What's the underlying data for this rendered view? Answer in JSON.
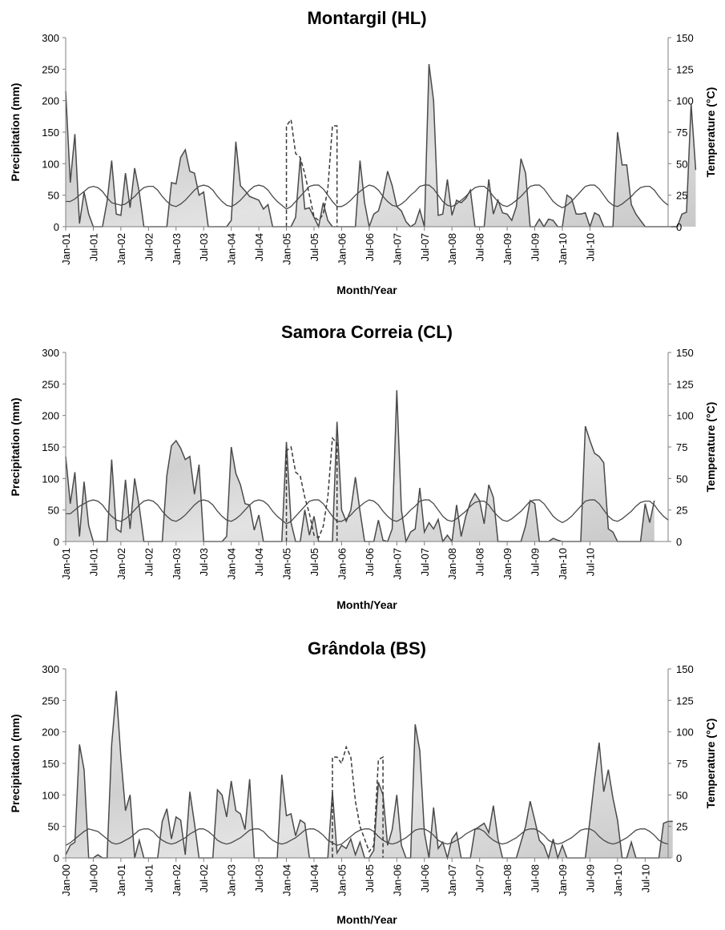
{
  "chart_data": [
    {
      "type": "area",
      "title": "Montargil (HL)",
      "xlabel": "Month/Year",
      "ylabel": "Precipitation (mm)",
      "y2label": "Temperature (°C)",
      "ylim": [
        0,
        300
      ],
      "y2lim": [
        0,
        150
      ],
      "yticks": [
        "0",
        "50",
        "100",
        "150",
        "200",
        "250",
        "300"
      ],
      "y2ticks": [
        "0",
        "25",
        "50",
        "75",
        "100",
        "125",
        "150"
      ],
      "start": "Jan-01",
      "xticks": [
        "Jan-01",
        "Jul-01",
        "Jan-02",
        "Jul-02",
        "Jan-03",
        "Jul-03",
        "Jan-04",
        "Jul-04",
        "Jan-05",
        "Jul-05",
        "Jan-06",
        "Jul-06",
        "Jan-07",
        "Jul-07",
        "Jan-08",
        "Jul-08",
        "Jan-09",
        "Jul-09",
        "Jan-10",
        "Jul-10"
      ],
      "series": [
        {
          "name": "",
          "values": [
            215,
            70,
            147,
            5,
            55,
            20,
            0,
            0,
            0,
            40,
            105,
            20,
            18,
            85,
            30,
            93,
            55,
            0,
            0,
            0,
            0,
            0,
            0,
            70,
            68,
            110,
            122,
            88,
            85,
            50,
            55,
            0,
            0,
            0,
            0,
            0,
            10,
            135,
            65,
            57,
            48,
            45,
            42,
            28,
            35,
            0,
            0,
            0,
            0,
            0,
            15,
            108,
            28,
            30,
            15,
            0,
            38,
            10,
            0,
            0,
            0,
            0,
            0,
            0,
            105,
            38,
            0,
            20,
            25,
            50,
            88,
            65,
            32,
            25,
            8,
            0,
            5,
            27,
            0,
            258,
            200,
            18,
            20,
            75,
            18,
            42,
            38,
            45,
            58,
            0,
            0,
            0,
            75,
            20,
            42,
            22,
            20,
            10,
            32,
            108,
            85,
            0,
            0,
            12,
            0,
            12,
            10,
            0,
            0,
            50,
            45,
            20,
            20,
            22,
            0,
            22,
            18,
            0,
            0,
            0,
            150,
            98,
            98,
            35,
            20,
            10,
            0,
            0,
            0,
            0,
            0,
            0,
            0,
            0,
            20,
            23,
            195,
            90
          ]
        },
        {
          "name": "",
          "values": [
            20,
            20,
            22,
            25,
            28,
            31,
            32,
            31,
            28,
            23,
            19,
            18,
            17,
            18,
            21,
            24,
            28,
            31,
            32,
            32,
            29,
            24,
            20,
            17,
            16,
            18,
            21,
            25,
            29,
            32,
            33,
            32,
            29,
            24,
            20,
            17,
            16,
            18,
            21,
            25,
            29,
            32,
            33,
            32,
            29,
            24,
            20,
            17,
            14,
            16,
            20,
            24,
            28,
            32,
            33,
            33,
            30,
            25,
            20,
            16,
            16,
            18,
            21,
            25,
            28,
            31,
            33,
            32,
            29,
            24,
            20,
            17,
            16,
            18,
            21,
            25,
            28,
            32,
            33,
            33,
            30,
            25,
            20,
            17,
            16,
            18,
            21,
            24,
            28,
            31,
            32,
            32,
            29,
            24,
            20,
            17,
            16,
            18,
            21,
            24,
            28,
            32,
            33,
            33,
            30,
            25,
            20,
            17,
            15,
            17,
            20,
            24,
            28,
            32,
            33,
            33,
            30,
            25,
            20,
            17,
            16,
            18,
            21,
            24,
            28,
            31,
            32,
            32,
            29,
            24,
            20,
            17
          ]
        },
        {
          "name": "",
          "style": "dashed",
          "x_index": [
            48,
            48,
            49,
            50,
            51,
            52,
            53,
            54,
            55,
            56,
            57,
            58,
            59,
            59
          ],
          "values": [
            0,
            80,
            85,
            58,
            55,
            42,
            25,
            8,
            5,
            10,
            30,
            80,
            80,
            0
          ]
        }
      ]
    },
    {
      "type": "area",
      "title": "Samora Correia (CL)",
      "xlabel": "Month/Year",
      "ylabel": "Precipitation (mm)",
      "y2label": "Temperature (°C)",
      "ylim": [
        0,
        300
      ],
      "y2lim": [
        0,
        150
      ],
      "yticks": [
        "0",
        "50",
        "100",
        "150",
        "200",
        "250",
        "300"
      ],
      "y2ticks": [
        "0",
        "25",
        "50",
        "75",
        "100",
        "125",
        "150"
      ],
      "start": "Jan-01",
      "xticks": [
        "Jan-01",
        "Jul-01",
        "Jan-02",
        "Jul-02",
        "Jan-03",
        "Jul-03",
        "Jan-04",
        "Jul-04",
        "Jan-05",
        "Jul-05",
        "Jan-06",
        "Jul-06",
        "Jan-07",
        "Jul-07",
        "Jan-08",
        "Jul-08",
        "Jan-09",
        "Jul-09",
        "Jan-10",
        "Jul-10"
      ],
      "series": [
        {
          "name": "",
          "values": [
            135,
            60,
            110,
            8,
            95,
            25,
            0,
            0,
            0,
            0,
            130,
            20,
            15,
            98,
            20,
            100,
            55,
            0,
            0,
            0,
            0,
            0,
            105,
            152,
            160,
            148,
            130,
            135,
            75,
            122,
            0,
            0,
            0,
            0,
            0,
            8,
            150,
            108,
            90,
            60,
            58,
            18,
            42,
            0,
            0,
            0,
            0,
            0,
            158,
            30,
            0,
            0,
            50,
            10,
            40,
            0,
            0,
            0,
            0,
            190,
            50,
            32,
            50,
            102,
            48,
            0,
            0,
            0,
            34,
            2,
            0,
            20,
            240,
            50,
            0,
            15,
            20,
            85,
            15,
            30,
            20,
            35,
            0,
            10,
            0,
            58,
            8,
            40,
            62,
            76,
            65,
            28,
            90,
            70,
            0,
            0,
            0,
            0,
            0,
            0,
            25,
            65,
            60,
            0,
            0,
            0,
            5,
            2,
            0,
            0,
            0,
            0,
            0,
            183,
            160,
            140,
            135,
            125,
            20,
            15,
            0,
            0,
            0,
            0,
            0,
            0,
            60,
            30,
            65
          ]
        },
        {
          "name": "",
          "values": [
            22,
            22,
            25,
            28,
            30,
            32,
            33,
            32,
            29,
            24,
            20,
            17,
            16,
            18,
            21,
            25,
            29,
            32,
            33,
            32,
            29,
            24,
            20,
            17,
            16,
            18,
            21,
            25,
            29,
            32,
            33,
            32,
            29,
            24,
            20,
            17,
            16,
            18,
            21,
            25,
            29,
            32,
            33,
            32,
            29,
            24,
            20,
            17,
            14,
            16,
            20,
            24,
            28,
            32,
            33,
            33,
            30,
            25,
            20,
            16,
            16,
            18,
            21,
            25,
            28,
            31,
            33,
            32,
            29,
            24,
            20,
            17,
            16,
            18,
            21,
            25,
            28,
            32,
            33,
            33,
            30,
            25,
            20,
            17,
            16,
            18,
            21,
            24,
            28,
            31,
            32,
            32,
            29,
            24,
            20,
            17,
            16,
            18,
            21,
            24,
            28,
            32,
            33,
            33,
            30,
            25,
            20,
            17,
            15,
            17,
            20,
            24,
            28,
            32,
            33,
            33,
            30,
            25,
            20,
            17,
            16,
            18,
            21,
            24,
            28,
            31,
            32,
            32,
            29,
            24,
            20,
            17
          ]
        },
        {
          "name": "",
          "style": "dashed",
          "x_index": [
            48,
            48,
            49,
            50,
            51,
            52,
            53,
            54,
            55,
            56,
            57,
            58,
            59,
            59
          ],
          "values": [
            0,
            72,
            75,
            55,
            52,
            35,
            22,
            5,
            3,
            12,
            35,
            82,
            78,
            0
          ]
        }
      ]
    },
    {
      "type": "area",
      "title": "Grândola (BS)",
      "xlabel": "Month/Year",
      "ylabel": "Precipitation (mm)",
      "y2label": "Temperature (°C)",
      "ylim": [
        0,
        300
      ],
      "y2lim": [
        0,
        150
      ],
      "yticks": [
        "0",
        "50",
        "100",
        "150",
        "200",
        "250",
        "300"
      ],
      "y2ticks": [
        "0",
        "25",
        "50",
        "75",
        "100",
        "125",
        "150"
      ],
      "start": "Jan-00",
      "xticks": [
        "Jan-00",
        "Jul-00",
        "Jan-01",
        "Jul-01",
        "Jan-02",
        "Jul-02",
        "Jan-03",
        "Jul-03",
        "Jan-04",
        "Jul-04",
        "Jan-05",
        "Jul-05",
        "Jan-06",
        "Jul-06",
        "Jan-07",
        "Jul-07",
        "Jan-08",
        "Jul-08",
        "Jan-09",
        "Jul-09",
        "Jan-10",
        "Jul-10"
      ],
      "series": [
        {
          "name": "",
          "values": [
            5,
            20,
            25,
            180,
            140,
            0,
            0,
            5,
            0,
            0,
            180,
            265,
            160,
            75,
            100,
            0,
            28,
            0,
            0,
            0,
            0,
            58,
            78,
            30,
            65,
            60,
            5,
            105,
            55,
            0,
            0,
            0,
            0,
            108,
            100,
            65,
            122,
            75,
            70,
            45,
            125,
            0,
            0,
            0,
            0,
            0,
            0,
            132,
            67,
            70,
            35,
            60,
            55,
            0,
            0,
            0,
            0,
            0,
            105,
            8,
            20,
            15,
            30,
            5,
            25,
            0,
            0,
            12,
            120,
            100,
            20,
            45,
            100,
            20,
            0,
            0,
            212,
            170,
            40,
            0,
            80,
            15,
            25,
            0,
            30,
            40,
            0,
            0,
            0,
            45,
            50,
            55,
            40,
            83,
            30,
            0,
            0,
            0,
            0,
            25,
            50,
            90,
            60,
            28,
            20,
            0,
            30,
            0,
            20,
            0,
            0,
            0,
            0,
            0,
            60,
            125,
            183,
            105,
            140,
            95,
            60,
            0,
            0,
            25,
            0,
            0,
            0,
            0,
            0,
            0,
            55,
            58,
            58
          ]
        },
        {
          "name": "",
          "values": [
            10,
            12,
            15,
            18,
            21,
            23,
            22,
            21,
            18,
            15,
            12,
            11,
            12,
            14,
            16,
            19,
            22,
            23,
            23,
            21,
            17,
            14,
            12,
            11,
            12,
            14,
            16,
            19,
            21,
            23,
            23,
            21,
            18,
            14,
            12,
            11,
            12,
            14,
            16,
            19,
            22,
            23,
            23,
            21,
            17,
            14,
            12,
            11,
            12,
            14,
            16,
            19,
            22,
            23,
            23,
            21,
            18,
            14,
            12,
            10,
            11,
            14,
            17,
            20,
            22,
            23,
            23,
            21,
            17,
            14,
            12,
            11,
            12,
            14,
            16,
            19,
            22,
            23,
            23,
            21,
            18,
            14,
            12,
            11,
            12,
            14,
            16,
            19,
            21,
            23,
            23,
            21,
            17,
            14,
            12,
            11,
            12,
            14,
            16,
            19,
            22,
            23,
            23,
            21,
            18,
            14,
            12,
            11,
            12,
            14,
            16,
            19,
            22,
            23,
            23,
            21,
            17,
            14,
            12,
            11,
            12,
            14,
            16,
            19,
            22,
            23,
            23,
            21,
            18,
            14,
            12,
            11
          ]
        },
        {
          "name": "",
          "style": "dashed",
          "x_index": [
            58,
            58,
            59,
            60,
            61,
            62,
            63,
            64,
            65,
            66,
            67,
            68,
            69,
            69
          ],
          "values": [
            0,
            80,
            80,
            75,
            88,
            80,
            45,
            25,
            15,
            5,
            10,
            78,
            80,
            0
          ]
        }
      ]
    }
  ]
}
